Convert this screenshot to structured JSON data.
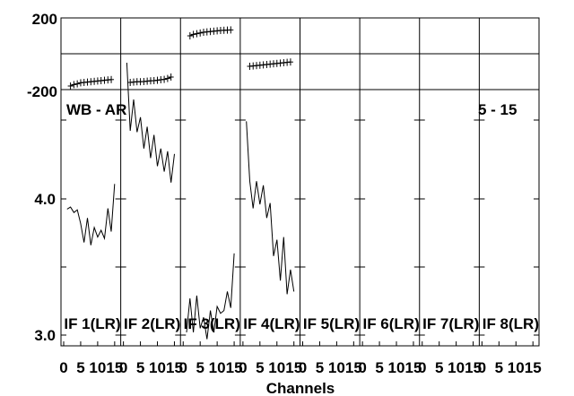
{
  "chart_data": {
    "type": "line",
    "xlabel": "Channels",
    "phase_ylim": [
      -200,
      200
    ],
    "phase_tick_labels": [
      "200",
      "-200"
    ],
    "amp_ylim": [
      3.0,
      4.0
    ],
    "amp_tick_labels": [
      "4.0",
      "3.0"
    ],
    "x_tick_labels": [
      "0",
      "5",
      "10",
      "15"
    ],
    "xlim": [
      0,
      16
    ],
    "baseline_label": "WB - AR",
    "time_label": "5 - 15",
    "panels": [
      {
        "label": "IF 1(LR)",
        "phase": [
          [
            2,
            -180
          ],
          [
            3,
            -172
          ],
          [
            4,
            -168
          ],
          [
            5,
            -162
          ],
          [
            6,
            -160
          ],
          [
            7,
            -158
          ],
          [
            8,
            -156
          ],
          [
            9,
            -154
          ],
          [
            10,
            -152
          ],
          [
            11,
            -150
          ],
          [
            12,
            -148
          ],
          [
            13,
            -146
          ],
          [
            14,
            -144
          ]
        ],
        "amp": [
          [
            1,
            3.925
          ],
          [
            2,
            3.94
          ],
          [
            3,
            3.9
          ],
          [
            4,
            3.92
          ],
          [
            5,
            3.82
          ],
          [
            6,
            3.68
          ],
          [
            7,
            3.86
          ],
          [
            8,
            3.66
          ],
          [
            9,
            3.79
          ],
          [
            10,
            3.72
          ],
          [
            11,
            3.77
          ],
          [
            12,
            3.71
          ],
          [
            13,
            3.93
          ],
          [
            14,
            3.76
          ],
          [
            15,
            4.11
          ]
        ]
      },
      {
        "label": "IF 2(LR)",
        "phase": [
          [
            2,
            -160
          ],
          [
            3,
            -158
          ],
          [
            4,
            -156
          ],
          [
            5,
            -156
          ],
          [
            6,
            -155
          ],
          [
            7,
            -153
          ],
          [
            8,
            -151
          ],
          [
            9,
            -150
          ],
          [
            10,
            -148
          ],
          [
            11,
            -145
          ],
          [
            12,
            -143
          ],
          [
            13,
            -138
          ],
          [
            14,
            -130
          ]
        ],
        "amp": [
          [
            1,
            5.0
          ],
          [
            2,
            4.5
          ],
          [
            3,
            4.73
          ],
          [
            4,
            4.49
          ],
          [
            5,
            4.6
          ],
          [
            6,
            4.37
          ],
          [
            7,
            4.53
          ],
          [
            8,
            4.3
          ],
          [
            9,
            4.47
          ],
          [
            10,
            4.24
          ],
          [
            11,
            4.37
          ],
          [
            12,
            4.2
          ],
          [
            13,
            4.35
          ],
          [
            14,
            4.12
          ],
          [
            15,
            4.33
          ]
        ]
      },
      {
        "label": "IF 3(LR)",
        "phase": [
          [
            2,
            100
          ],
          [
            3,
            108
          ],
          [
            4,
            112
          ],
          [
            5,
            116
          ],
          [
            6,
            120
          ],
          [
            7,
            122
          ],
          [
            8,
            124
          ],
          [
            9,
            126
          ],
          [
            10,
            128
          ],
          [
            11,
            130
          ],
          [
            12,
            131
          ],
          [
            13,
            132
          ],
          [
            14,
            133
          ]
        ],
        "amp": [
          [
            1,
            3.02
          ],
          [
            2,
            3.27
          ],
          [
            3,
            3.02
          ],
          [
            4,
            3.29
          ],
          [
            5,
            3.05
          ],
          [
            6,
            3.13
          ],
          [
            7,
            2.97
          ],
          [
            8,
            3.18
          ],
          [
            9,
            3.02
          ],
          [
            10,
            3.21
          ],
          [
            11,
            3.16
          ],
          [
            12,
            3.18
          ],
          [
            13,
            3.32
          ],
          [
            14,
            3.2
          ],
          [
            15,
            3.6
          ]
        ]
      },
      {
        "label": "IF 4(LR)",
        "phase": [
          [
            2,
            -70
          ],
          [
            3,
            -68
          ],
          [
            4,
            -66
          ],
          [
            5,
            -64
          ],
          [
            6,
            -62
          ],
          [
            7,
            -60
          ],
          [
            8,
            -58
          ],
          [
            9,
            -56
          ],
          [
            10,
            -54
          ],
          [
            11,
            -52
          ],
          [
            12,
            -50
          ],
          [
            13,
            -48
          ],
          [
            14,
            -46
          ]
        ],
        "amp": [
          [
            1,
            4.57
          ],
          [
            2,
            4.13
          ],
          [
            3,
            3.93
          ],
          [
            4,
            4.13
          ],
          [
            5,
            3.96
          ],
          [
            6,
            4.1
          ],
          [
            7,
            3.86
          ],
          [
            8,
            3.97
          ],
          [
            9,
            3.58
          ],
          [
            10,
            3.7
          ],
          [
            11,
            3.4
          ],
          [
            12,
            3.72
          ],
          [
            13,
            3.3
          ],
          [
            14,
            3.48
          ],
          [
            15,
            3.32
          ]
        ]
      },
      {
        "label": "IF 5(LR)",
        "phase": [],
        "amp": []
      },
      {
        "label": "IF 6(LR)",
        "phase": [],
        "amp": []
      },
      {
        "label": "IF 7(LR)",
        "phase": [],
        "amp": []
      },
      {
        "label": "IF 8(LR)",
        "phase": [],
        "amp": []
      }
    ]
  }
}
